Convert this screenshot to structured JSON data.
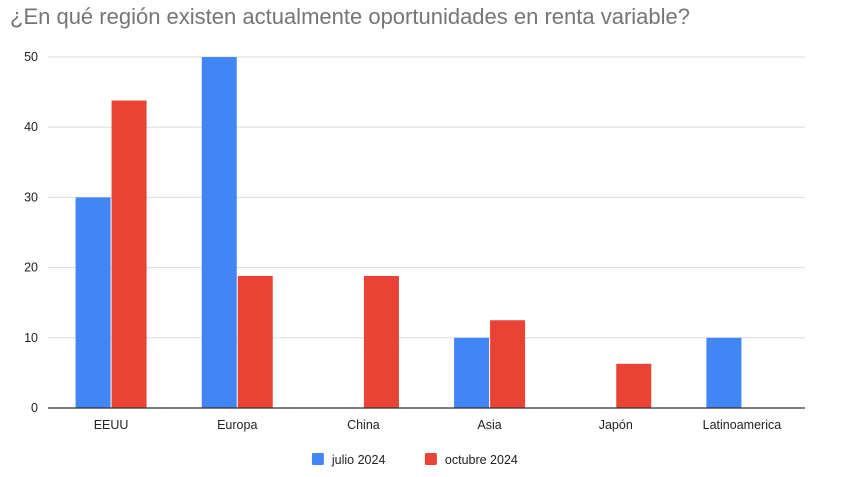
{
  "chart_data": {
    "type": "bar",
    "title": "¿En qué región existen actualmente oportunidades en renta variable?",
    "xlabel": "",
    "ylabel": "",
    "categories": [
      "EEUU",
      "Europa",
      "China",
      "Asia",
      "Japón",
      "Latinoamerica"
    ],
    "series": [
      {
        "name": "julio 2024",
        "color": "#4285f4",
        "values": [
          30,
          50,
          0,
          10,
          0,
          10
        ]
      },
      {
        "name": "octubre 2024",
        "color": "#ea4335",
        "values": [
          43.8,
          18.8,
          18.8,
          12.5,
          6.3,
          0
        ]
      }
    ],
    "ylim": [
      0,
      50
    ],
    "yticks": [
      0,
      10,
      20,
      30,
      40,
      50
    ],
    "grid": true,
    "legend_position": "bottom",
    "gridline_color": "#dddddd",
    "axis_color": "#333333"
  }
}
